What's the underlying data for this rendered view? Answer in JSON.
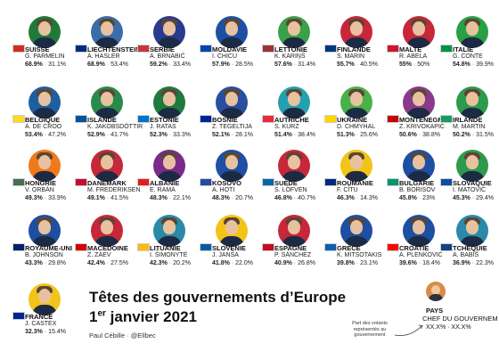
{
  "title": "Têtes des gouvernements d’Europe",
  "subtitle_main": "1",
  "subtitle_sup": "er",
  "subtitle_rest": " janvier 2021",
  "credit": "Paul Cébille · @Ellbec",
  "legend": {
    "country": "PAYS",
    "leader": "CHEF DU GOUVERNEM",
    "values": "XX.X% · XX.X%",
    "note": "Part des votants représentés au gouvernement"
  },
  "rows": [
    [
      {
        "country": "SUISSE",
        "leader": "G. PARMELIN",
        "v1": "68.9%",
        "v2": "31.1%",
        "flag": "#d52b1e",
        "bg": "#1f7a3a"
      },
      {
        "country": "LIECHTENSTEIN",
        "leader": "A. HASLER",
        "v1": "68.9%",
        "v2": "53.4%",
        "flag": "#002b7f",
        "bg": "#3b6ea8"
      },
      {
        "country": "SERBIE",
        "leader": "A. BRNABIĆ",
        "v1": "59.2%",
        "v2": "33.4%",
        "flag": "#c6363c",
        "bg": "#2a3b8f"
      },
      {
        "country": "MOLDAVIE",
        "leader": "I. CHICU",
        "v1": "57.9%",
        "v2": "28.5%",
        "flag": "#0046ae",
        "bg": "#1e4fa3"
      },
      {
        "country": "LETTONIE",
        "leader": "K. KARIŅŠ",
        "v1": "57.6%",
        "v2": "31.4%",
        "flag": "#9e3039",
        "bg": "#3aa04a"
      },
      {
        "country": "FINLANDE",
        "leader": "S. MARIN",
        "v1": "55.7%",
        "v2": "40.5%",
        "flag": "#003580",
        "bg": "#c62839"
      },
      {
        "country": "MALTE",
        "leader": "R. ABELA",
        "v1": "55%",
        "v2": "50%",
        "flag": "#cf142b",
        "bg": "#c62839"
      },
      {
        "country": "ITALIE",
        "leader": "G. CONTE",
        "v1": "54.8%",
        "v2": "39.9%",
        "flag": "#009246",
        "bg": "#28a045"
      }
    ],
    [
      {
        "country": "BELGIQUE",
        "leader": "A. DE CROO",
        "v1": "53.4%",
        "v2": "47.2%",
        "flag": "#fdda24",
        "bg": "#1f5fa0"
      },
      {
        "country": "ISLANDE",
        "leader": "K. JAKOBSDÓTTIR",
        "v1": "52.9%",
        "v2": "41.7%",
        "flag": "#02529c",
        "bg": "#2a8a4a"
      },
      {
        "country": "ESTONIE",
        "leader": "J. RATAS",
        "v1": "52.3%",
        "v2": "33.3%",
        "flag": "#0072ce",
        "bg": "#1e7a3e"
      },
      {
        "country": "BOSNIE",
        "leader": "Z. TEGELTIJA",
        "v1": "52.1%",
        "v2": "28.1%",
        "flag": "#002395",
        "bg": "#2a4fa0"
      },
      {
        "country": "AUTRICHE",
        "leader": "S. KURZ",
        "v1": "51.4%",
        "v2": "38.4%",
        "flag": "#ed2939",
        "bg": "#25a0b0"
      },
      {
        "country": "UKRAINE",
        "leader": "D. CHMYHAL",
        "v1": "51.3%",
        "v2": "25.6%",
        "flag": "#ffd500",
        "bg": "#4ab04a"
      },
      {
        "country": "MONTENEGRO",
        "leader": "Z. KRIVOKAPIĆ",
        "v1": "50.6%",
        "v2": "38.8%",
        "flag": "#c40308",
        "bg": "#8a3a8a"
      },
      {
        "country": "IRLANDE",
        "leader": "M. MARTIN",
        "v1": "50.2%",
        "v2": "31.5%",
        "flag": "#169b62",
        "bg": "#2e9a4e"
      }
    ],
    [
      {
        "country": "HONGRIE",
        "leader": "V. ORBÁN",
        "v1": "49.3%",
        "v2": "33.9%",
        "flag": "#477050",
        "bg": "#f07a1a"
      },
      {
        "country": "DANEMARK",
        "leader": "M. FREDERIKSEN",
        "v1": "49.1%",
        "v2": "41.5%",
        "flag": "#c60c30",
        "bg": "#c62839"
      },
      {
        "country": "ALBANIE",
        "leader": "E. RAMA",
        "v1": "48.3%",
        "v2": "22.1%",
        "flag": "#e41e20",
        "bg": "#7a2a8a"
      },
      {
        "country": "KOSOVO",
        "leader": "A. HOTI",
        "v1": "48.3%",
        "v2": "20.7%",
        "flag": "#244aa5",
        "bg": "#1e4fa3"
      },
      {
        "country": "SUÈDE",
        "leader": "S. LÖFVEN",
        "v1": "46.8%",
        "v2": "40.7%",
        "flag": "#006aa7",
        "bg": "#c62839"
      },
      {
        "country": "ROUMANIE",
        "leader": "F. CÎTU",
        "v1": "46.3%",
        "v2": "14.3%",
        "flag": "#002b7f",
        "bg": "#f2c41a"
      },
      {
        "country": "BULGARIE",
        "leader": "B. BORISOV",
        "v1": "45.8%",
        "v2": "23%",
        "flag": "#00966e",
        "bg": "#1e4fa3"
      },
      {
        "country": "SLOVAQUIE",
        "leader": "I. MATOVIČ",
        "v1": "45.3%",
        "v2": "29.4%",
        "flag": "#0b4ea2",
        "bg": "#2e9a4e"
      }
    ],
    [
      {
        "country": "ROYAUME-UNI",
        "leader": "B. JOHNSON",
        "v1": "43.3%",
        "v2": "29.8%",
        "flag": "#012169",
        "bg": "#1e4fa3"
      },
      {
        "country": "MACÉDOINE",
        "leader": "Z. ZAEV",
        "v1": "42.4%",
        "v2": "27.5%",
        "flag": "#d20000",
        "bg": "#c62839"
      },
      {
        "country": "LITUANIE",
        "leader": "I. ŠIMONYTĖ",
        "v1": "42.3%",
        "v2": "20.2%",
        "flag": "#fdb913",
        "bg": "#2a8aa8"
      },
      {
        "country": "SLOVÉNIE",
        "leader": "J. JANŠA",
        "v1": "41.8%",
        "v2": "22.0%",
        "flag": "#005da4",
        "bg": "#f2c41a"
      },
      {
        "country": "ESPAGNE",
        "leader": "P. SÁNCHEZ",
        "v1": "40.9%",
        "v2": "26.8%",
        "flag": "#c60b1e",
        "bg": "#c62839"
      },
      {
        "country": "GRÈCE",
        "leader": "K. MITSOTAKIS",
        "v1": "39.8%",
        "v2": "23.1%",
        "flag": "#0d5eaf",
        "bg": "#1e4fa3"
      },
      {
        "country": "CROATIE",
        "leader": "A. PLENKOVIĆ",
        "v1": "39.6%",
        "v2": "18.4%",
        "flag": "#ff0000",
        "bg": "#1e4fa3"
      },
      {
        "country": "TCHÉQUIE",
        "leader": "A. BABIŠ",
        "v1": "36.9%",
        "v2": "22.3%",
        "flag": "#11457e",
        "bg": "#2a8aa8"
      }
    ],
    [
      {
        "country": "FRANCE",
        "leader": "J. CASTEX",
        "v1": "32.3%",
        "v2": "15.4%",
        "flag": "#002395",
        "bg": "#f2c41a"
      }
    ]
  ]
}
